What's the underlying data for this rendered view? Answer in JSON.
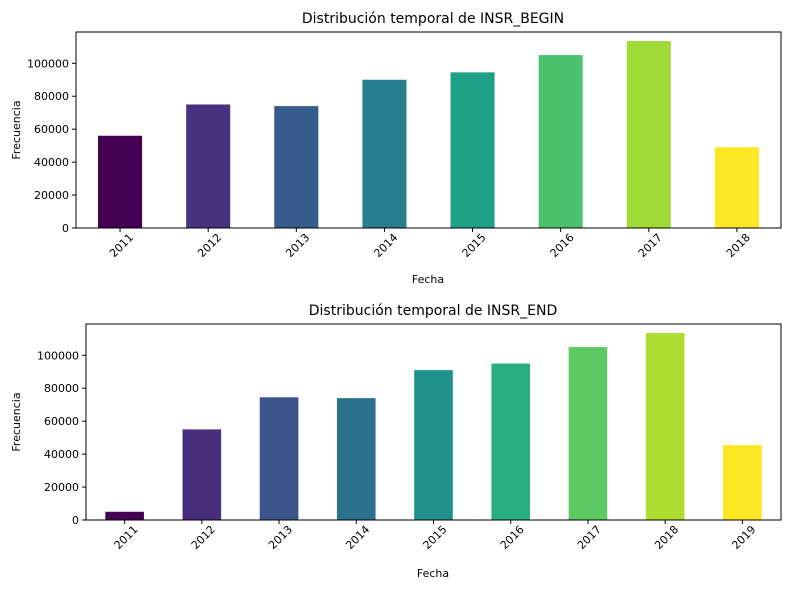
{
  "chart_data": [
    {
      "type": "bar",
      "title": "Distribución temporal de INSR_BEGIN",
      "xlabel": "Fecha",
      "ylabel": "Frecuencia",
      "categories": [
        "2011",
        "2012",
        "2013",
        "2014",
        "2015",
        "2016",
        "2017",
        "2018"
      ],
      "values": [
        56000,
        75000,
        74000,
        90000,
        94500,
        105000,
        113500,
        49000
      ],
      "colors": [
        "#440154",
        "#46327e",
        "#365c8d",
        "#277f8e",
        "#1fa187",
        "#4ac16d",
        "#a0da39",
        "#fde725"
      ],
      "ylim": [
        0,
        119000
      ],
      "yticks": [
        0,
        20000,
        40000,
        60000,
        80000,
        100000
      ],
      "grid": false,
      "legend": "none"
    },
    {
      "type": "bar",
      "title": "Distribución temporal de INSR_END",
      "xlabel": "Fecha",
      "ylabel": "Frecuencia",
      "categories": [
        "2011",
        "2012",
        "2013",
        "2014",
        "2015",
        "2016",
        "2017",
        "2018",
        "2019"
      ],
      "values": [
        5000,
        55000,
        74500,
        74000,
        91000,
        95000,
        105000,
        113500,
        45500
      ],
      "colors": [
        "#440154",
        "#472d7b",
        "#3b528b",
        "#2c728e",
        "#21918c",
        "#28ae80",
        "#5ec962",
        "#addc30",
        "#fde725"
      ],
      "ylim": [
        0,
        119000
      ],
      "yticks": [
        0,
        20000,
        40000,
        60000,
        80000,
        100000
      ],
      "grid": false,
      "legend": "none"
    }
  ]
}
